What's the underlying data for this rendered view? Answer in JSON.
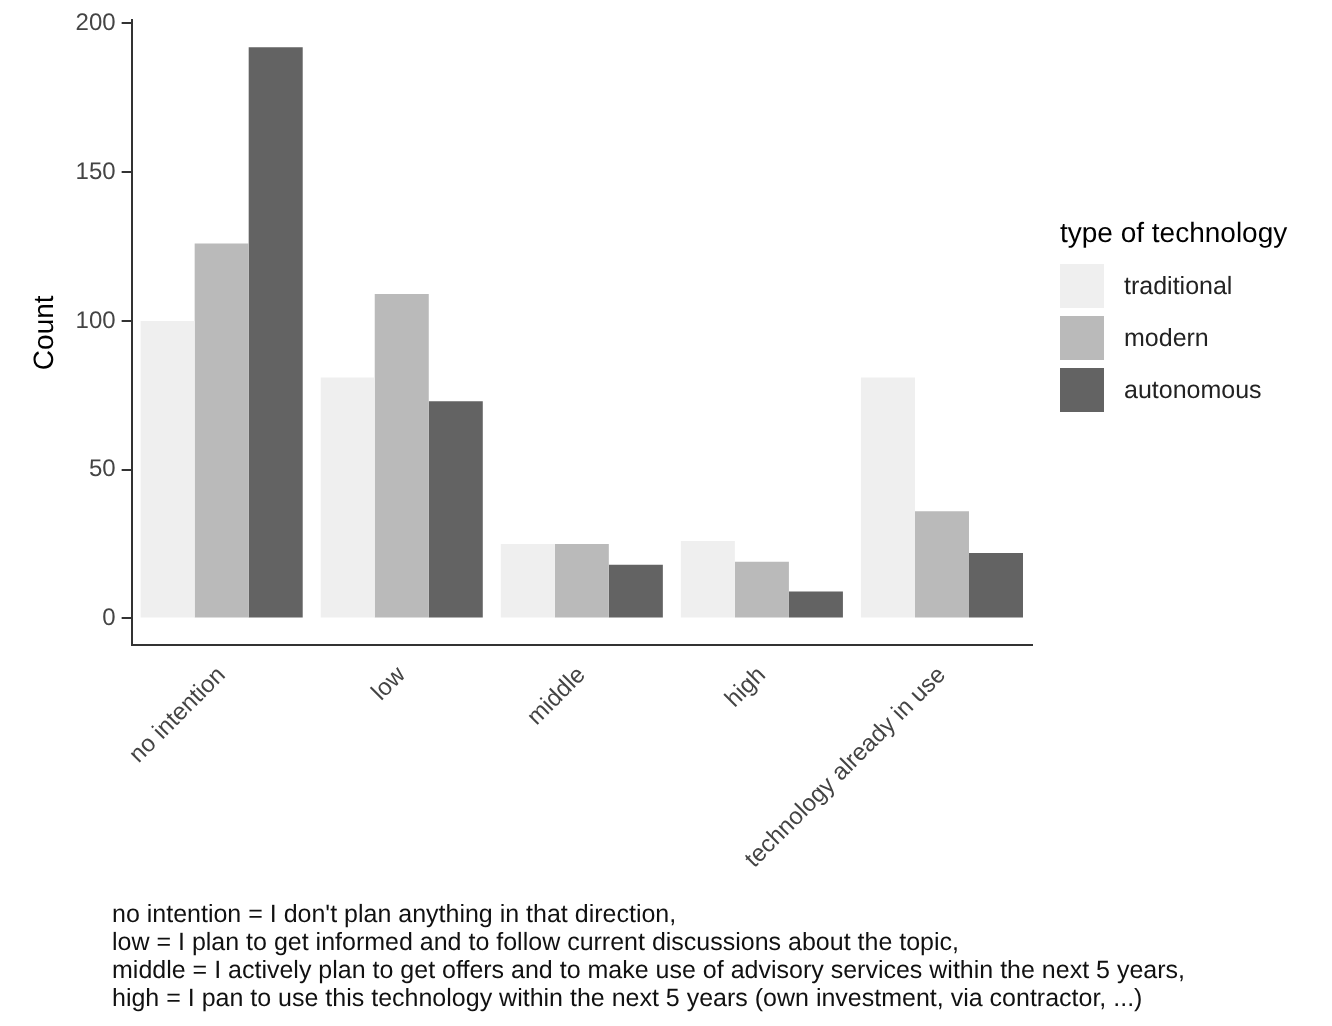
{
  "chart_data": {
    "type": "bar",
    "categories": [
      "no intention",
      "low",
      "middle",
      "high",
      "technology already in use"
    ],
    "series": [
      {
        "name": "traditional",
        "color": "#efefef",
        "values": [
          100,
          81,
          25,
          26,
          81
        ]
      },
      {
        "name": "modern",
        "color": "#bababa",
        "values": [
          126,
          109,
          25,
          19,
          36
        ]
      },
      {
        "name": "autonomous",
        "color": "#636363",
        "values": [
          192,
          73,
          18,
          9,
          22
        ]
      }
    ],
    "ylabel": "Count",
    "legend_title": "type of technology",
    "ylim": [
      -9,
      201
    ],
    "yticks": [
      0,
      50,
      100,
      150,
      200
    ],
    "grid": false,
    "legend": "right",
    "annotations": [
      "no intention = I don't plan anything in that direction,",
      "low = I plan to get informed and to follow current discussions about the topic,",
      "middle = I actively plan to get offers and to make use of advisory services within the next 5 years,",
      "high = I pan to use this technology within the next 5 years (own investment, via contractor, ...)"
    ]
  }
}
